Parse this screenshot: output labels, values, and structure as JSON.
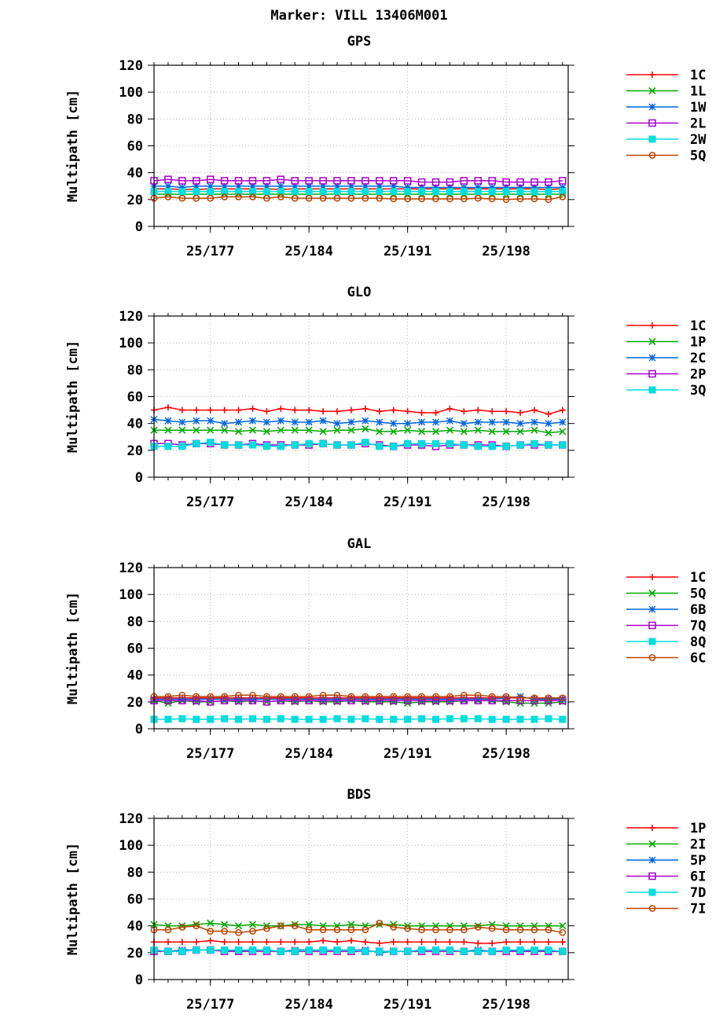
{
  "title": "Marker: VILL 13406M001",
  "x_tick_labels": [
    "25/177",
    "25/184",
    "25/191",
    "25/198"
  ],
  "chart_data": [
    {
      "type": "line",
      "title": "GPS",
      "ylabel": "Multipath [cm]",
      "ylim": [
        0,
        120
      ],
      "yticks": [
        0,
        20,
        40,
        60,
        80,
        100,
        120
      ],
      "xlim": [
        173,
        202.4
      ],
      "xticks": [
        177,
        184,
        191,
        198
      ],
      "xtick_labels": [
        "25/177",
        "25/184",
        "25/191",
        "25/198"
      ],
      "grid": true,
      "legend_position": "right",
      "x": [
        173,
        174,
        175,
        176,
        177,
        178,
        179,
        180,
        181,
        182,
        183,
        184,
        185,
        186,
        187,
        188,
        189,
        190,
        191,
        192,
        193,
        194,
        195,
        196,
        197,
        198,
        199,
        200,
        201,
        202
      ],
      "series": [
        {
          "name": "1C",
          "color": "#ff0000",
          "marker": "plus",
          "values": [
            28,
            28,
            27.5,
            27.5,
            28,
            28,
            28,
            28,
            28,
            27.5,
            28,
            28,
            28,
            28,
            28,
            28,
            28,
            28,
            28,
            28,
            28,
            28,
            28,
            28,
            28,
            28,
            28,
            28,
            27.5,
            28
          ]
        },
        {
          "name": "1L",
          "color": "#00aa00",
          "marker": "x",
          "values": [
            24,
            24,
            24,
            24,
            24,
            24,
            24,
            24,
            24,
            24,
            24,
            24,
            24,
            24,
            24,
            24,
            24,
            24,
            24,
            24,
            24,
            24,
            24,
            24,
            24,
            24,
            24,
            24,
            24,
            24
          ]
        },
        {
          "name": "1W",
          "color": "#0066dd",
          "marker": "star",
          "values": [
            30,
            30,
            29,
            30,
            30,
            30,
            30,
            30,
            30,
            30,
            30,
            30,
            30,
            30,
            30,
            30,
            30,
            30,
            29,
            29,
            29,
            29,
            29,
            29,
            29,
            29,
            29,
            29,
            29,
            29
          ]
        },
        {
          "name": "2L",
          "color": "#aa00cc",
          "marker": "square-open",
          "values": [
            34,
            35,
            34,
            34,
            35,
            34,
            34,
            34,
            34,
            35,
            34,
            34,
            34,
            34,
            34,
            34,
            34,
            34,
            34,
            33,
            33,
            33,
            34,
            34,
            34,
            33,
            33,
            33,
            33,
            34
          ]
        },
        {
          "name": "2W",
          "color": "#00dddd",
          "marker": "square-filled",
          "values": [
            26,
            26,
            26,
            26,
            26,
            26,
            26,
            26,
            26,
            26,
            26,
            26,
            26,
            26,
            26,
            26,
            26,
            26,
            26,
            26,
            26,
            26,
            26,
            26,
            26,
            26,
            26,
            26,
            26,
            26
          ]
        },
        {
          "name": "5Q",
          "color": "#bb4400",
          "marker": "circle",
          "values": [
            21,
            22,
            21,
            21,
            21,
            22,
            22,
            22,
            21,
            22,
            21,
            21,
            21,
            21,
            21,
            21,
            21,
            20.5,
            20.5,
            20.5,
            20.5,
            20.5,
            20.5,
            21,
            20.5,
            20,
            20.5,
            20.5,
            20,
            22
          ]
        }
      ]
    },
    {
      "type": "line",
      "title": "GLO",
      "ylabel": "Multipath [cm]",
      "ylim": [
        0,
        120
      ],
      "yticks": [
        0,
        20,
        40,
        60,
        80,
        100,
        120
      ],
      "xlim": [
        173,
        202.4
      ],
      "xticks": [
        177,
        184,
        191,
        198
      ],
      "xtick_labels": [
        "25/177",
        "25/184",
        "25/191",
        "25/198"
      ],
      "grid": true,
      "legend_position": "right",
      "x": [
        173,
        174,
        175,
        176,
        177,
        178,
        179,
        180,
        181,
        182,
        183,
        184,
        185,
        186,
        187,
        188,
        189,
        190,
        191,
        192,
        193,
        194,
        195,
        196,
        197,
        198,
        199,
        200,
        201,
        202
      ],
      "series": [
        {
          "name": "1C",
          "color": "#ff0000",
          "marker": "plus",
          "values": [
            50,
            52,
            50,
            50,
            50,
            50,
            50,
            51,
            49,
            51,
            50,
            50,
            49,
            49,
            50,
            51,
            49,
            50,
            49,
            48,
            48,
            51,
            49,
            50,
            49,
            49,
            48,
            50,
            47,
            50
          ]
        },
        {
          "name": "1P",
          "color": "#00aa00",
          "marker": "x",
          "values": [
            35,
            35,
            35,
            35,
            35,
            35,
            34,
            35,
            34,
            35,
            35,
            35,
            34,
            35,
            35,
            36,
            34,
            34,
            35,
            34,
            34,
            35,
            34,
            35,
            34,
            34,
            34,
            35,
            33,
            34
          ]
        },
        {
          "name": "2C",
          "color": "#0066dd",
          "marker": "star",
          "values": [
            43,
            42,
            41,
            42,
            42,
            40,
            41,
            42,
            41,
            42,
            41,
            41,
            42,
            40,
            41,
            42,
            41,
            40,
            40,
            41,
            41,
            42,
            40,
            41,
            41,
            41,
            40,
            41,
            40,
            41
          ]
        },
        {
          "name": "2P",
          "color": "#aa00cc",
          "marker": "square-open",
          "values": [
            25,
            25,
            24,
            25,
            25,
            24,
            24,
            25,
            24,
            24,
            24,
            24,
            25,
            24,
            24,
            25,
            24,
            23,
            24,
            24,
            23,
            24,
            24,
            24,
            24,
            23,
            24,
            24,
            24,
            24
          ]
        },
        {
          "name": "3Q",
          "color": "#00dddd",
          "marker": "square-filled",
          "values": [
            23,
            23,
            23,
            25,
            26,
            24,
            24,
            24,
            23,
            23,
            24,
            25,
            25,
            24,
            24,
            26,
            23,
            23,
            25,
            25,
            25,
            25,
            24,
            23,
            23,
            23,
            24,
            25,
            24,
            24
          ]
        }
      ]
    },
    {
      "type": "line",
      "title": "GAL",
      "ylabel": "Multipath [cm]",
      "ylim": [
        0,
        120
      ],
      "yticks": [
        0,
        20,
        40,
        60,
        80,
        100,
        120
      ],
      "xlim": [
        173,
        202.4
      ],
      "xticks": [
        177,
        184,
        191,
        198
      ],
      "xtick_labels": [
        "25/177",
        "25/184",
        "25/191",
        "25/198"
      ],
      "grid": true,
      "legend_position": "right",
      "x": [
        173,
        174,
        175,
        176,
        177,
        178,
        179,
        180,
        181,
        182,
        183,
        184,
        185,
        186,
        187,
        188,
        189,
        190,
        191,
        192,
        193,
        194,
        195,
        196,
        197,
        198,
        199,
        200,
        201,
        202
      ],
      "series": [
        {
          "name": "1C",
          "color": "#ff0000",
          "marker": "plus",
          "values": [
            23,
            23,
            23,
            23,
            23,
            23,
            23,
            23,
            23,
            23,
            23,
            23,
            23,
            23,
            23,
            23,
            23,
            23,
            23,
            23,
            23,
            23,
            23,
            23,
            23,
            23,
            23,
            23,
            22,
            22
          ]
        },
        {
          "name": "5Q",
          "color": "#00aa00",
          "marker": "x",
          "values": [
            21,
            19,
            21,
            20,
            20,
            21,
            20,
            21,
            20,
            21,
            20,
            21,
            20,
            20,
            21,
            20,
            20,
            20,
            19,
            20,
            20,
            20,
            21,
            21,
            21,
            20,
            19,
            19,
            19,
            20
          ]
        },
        {
          "name": "6B",
          "color": "#0066dd",
          "marker": "star",
          "values": [
            22,
            22,
            22,
            22,
            22,
            22,
            22,
            22,
            22,
            22,
            22,
            22,
            22,
            22,
            22,
            22,
            22,
            22,
            22,
            22,
            22,
            22,
            22,
            22,
            22,
            23,
            24,
            22,
            22,
            22
          ]
        },
        {
          "name": "7Q",
          "color": "#aa00cc",
          "marker": "square-open",
          "values": [
            21,
            21,
            21,
            21,
            20,
            21,
            21,
            21,
            20,
            21,
            21,
            21,
            21,
            21,
            21,
            21,
            21,
            21,
            21,
            21,
            21,
            21,
            21,
            21,
            21,
            21,
            21,
            21,
            21,
            21
          ]
        },
        {
          "name": "8Q",
          "color": "#00dddd",
          "marker": "square-filled",
          "values": [
            7,
            7,
            7.5,
            7,
            7,
            7.5,
            7,
            7.5,
            7,
            7.5,
            7,
            7,
            7,
            7.5,
            7,
            7.5,
            7,
            7,
            7,
            7.5,
            7,
            7.5,
            7.5,
            7.5,
            7,
            7,
            7,
            7,
            7.5,
            7
          ]
        },
        {
          "name": "6C",
          "color": "#bb4400",
          "marker": "circle",
          "values": [
            24,
            24,
            25,
            24,
            24,
            24,
            25,
            25,
            24,
            24,
            24,
            24,
            25,
            25,
            24,
            24,
            24,
            24,
            24,
            24,
            24,
            24,
            25,
            25,
            24,
            24,
            23,
            23,
            23,
            23
          ]
        }
      ]
    },
    {
      "type": "line",
      "title": "BDS",
      "ylabel": "Multipath [cm]",
      "ylim": [
        0,
        120
      ],
      "yticks": [
        0,
        20,
        40,
        60,
        80,
        100,
        120
      ],
      "xlim": [
        173,
        202.4
      ],
      "xticks": [
        177,
        184,
        191,
        198
      ],
      "xtick_labels": [
        "25/177",
        "25/184",
        "25/191",
        "25/198"
      ],
      "grid": true,
      "legend_position": "right",
      "x": [
        173,
        174,
        175,
        176,
        177,
        178,
        179,
        180,
        181,
        182,
        183,
        184,
        185,
        186,
        187,
        188,
        189,
        190,
        191,
        192,
        193,
        194,
        195,
        196,
        197,
        198,
        199,
        200,
        201,
        202
      ],
      "series": [
        {
          "name": "1P",
          "color": "#ff0000",
          "marker": "plus",
          "values": [
            28,
            28,
            28,
            28,
            29,
            28,
            28,
            28,
            28,
            28,
            28,
            28,
            29,
            28,
            29,
            28,
            27,
            28,
            28,
            28,
            28,
            28,
            28,
            27,
            27,
            28,
            28,
            28,
            28,
            28
          ]
        },
        {
          "name": "2I",
          "color": "#00aa00",
          "marker": "x",
          "values": [
            41,
            40,
            40,
            41,
            42,
            41,
            40,
            41,
            40,
            40,
            41,
            41,
            40,
            40,
            41,
            40,
            41,
            41,
            40,
            40,
            40,
            40,
            40,
            40,
            41,
            40,
            40,
            40,
            40,
            40
          ]
        },
        {
          "name": "5P",
          "color": "#0066dd",
          "marker": "star",
          "values": [
            22,
            21,
            22,
            22,
            22,
            22,
            21,
            22,
            22,
            21,
            22,
            22,
            22,
            22,
            22,
            22,
            20,
            21,
            21,
            22,
            22,
            22,
            21,
            22,
            21,
            22,
            21,
            22,
            21,
            21
          ]
        },
        {
          "name": "6I",
          "color": "#aa00cc",
          "marker": "square-open",
          "values": [
            21,
            21,
            21,
            22,
            22,
            21,
            21,
            21,
            21,
            21,
            21,
            21,
            21,
            21,
            21,
            21,
            21,
            21,
            21,
            21,
            21,
            21,
            21,
            21,
            21,
            21,
            21,
            21,
            21,
            21
          ]
        },
        {
          "name": "7D",
          "color": "#00dddd",
          "marker": "square-filled",
          "values": [
            22,
            21,
            21,
            22,
            22,
            22,
            22,
            22,
            22,
            21,
            21,
            22,
            22,
            22,
            22,
            21,
            21,
            21,
            21,
            22,
            22,
            22,
            21,
            21,
            21,
            22,
            22,
            22,
            22,
            21
          ]
        },
        {
          "name": "7I",
          "color": "#bb4400",
          "marker": "circle",
          "values": [
            37,
            37,
            39,
            40,
            36,
            36,
            35,
            36,
            38,
            40,
            40,
            37,
            37,
            37,
            37,
            37,
            42,
            39,
            38,
            37,
            37,
            37,
            37,
            39,
            38,
            37,
            37,
            37,
            37,
            35
          ]
        }
      ]
    }
  ]
}
